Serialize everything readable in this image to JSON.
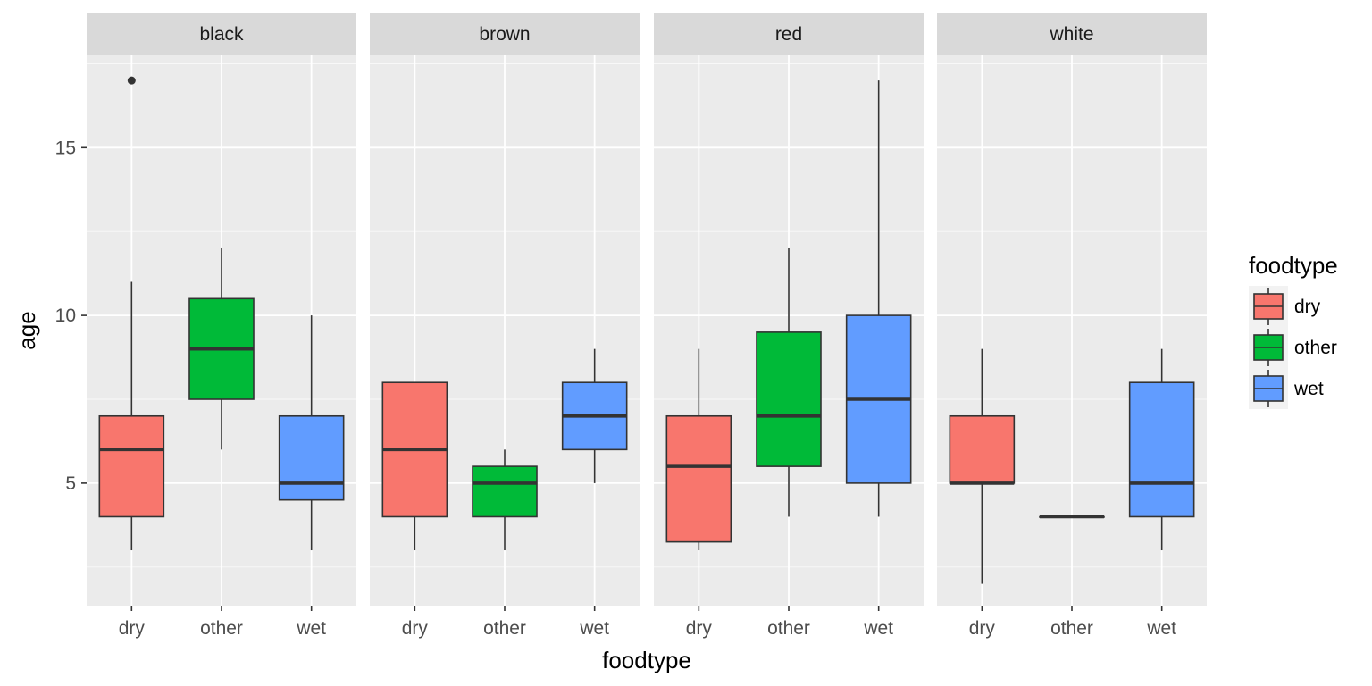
{
  "chart_data": {
    "type": "boxplot",
    "xlabel": "foodtype",
    "ylabel": "age",
    "ylim": [
      1.35,
      17.75
    ],
    "yticks": [
      5,
      10,
      15
    ],
    "categories": [
      "dry",
      "other",
      "wet"
    ],
    "facets": [
      {
        "name": "black",
        "boxes": [
          {
            "category": "dry",
            "min": 3,
            "q1": 4,
            "median": 6,
            "q3": 7,
            "max": 11,
            "outliers": [
              17
            ]
          },
          {
            "category": "other",
            "min": 6,
            "q1": 7.5,
            "median": 9,
            "q3": 10.5,
            "max": 12,
            "outliers": []
          },
          {
            "category": "wet",
            "min": 3,
            "q1": 4.5,
            "median": 5,
            "q3": 7,
            "max": 10,
            "outliers": []
          }
        ]
      },
      {
        "name": "brown",
        "boxes": [
          {
            "category": "dry",
            "min": 3,
            "q1": 4,
            "median": 6,
            "q3": 8,
            "max": 8,
            "outliers": []
          },
          {
            "category": "other",
            "min": 3,
            "q1": 4,
            "median": 5,
            "q3": 5.5,
            "max": 6,
            "outliers": []
          },
          {
            "category": "wet",
            "min": 5,
            "q1": 6,
            "median": 7,
            "q3": 8,
            "max": 9,
            "outliers": []
          }
        ]
      },
      {
        "name": "red",
        "boxes": [
          {
            "category": "dry",
            "min": 3,
            "q1": 3.25,
            "median": 5.5,
            "q3": 7,
            "max": 9,
            "outliers": []
          },
          {
            "category": "other",
            "min": 4,
            "q1": 5.5,
            "median": 7,
            "q3": 9.5,
            "max": 12,
            "outliers": []
          },
          {
            "category": "wet",
            "min": 4,
            "q1": 5,
            "median": 7.5,
            "q3": 10,
            "max": 17,
            "outliers": []
          }
        ]
      },
      {
        "name": "white",
        "boxes": [
          {
            "category": "dry",
            "min": 2,
            "q1": 5,
            "median": 5,
            "q3": 7,
            "max": 9,
            "outliers": []
          },
          {
            "category": "other",
            "min": 4,
            "q1": 4,
            "median": 4,
            "q3": 4,
            "max": 4,
            "outliers": []
          },
          {
            "category": "wet",
            "min": 3,
            "q1": 4,
            "median": 5,
            "q3": 8,
            "max": 9,
            "outliers": []
          }
        ]
      }
    ],
    "legend": {
      "title": "foodtype",
      "position": "right",
      "items": [
        {
          "label": "dry",
          "color": "#F8766D"
        },
        {
          "label": "other",
          "color": "#00BA38"
        },
        {
          "label": "wet",
          "color": "#619CFF"
        }
      ]
    },
    "colors": {
      "panel_bg": "#EBEBEB",
      "strip_bg": "#D9D9D9",
      "grid_major": "#FFFFFF",
      "box_line": "#333333"
    },
    "grid": true
  }
}
